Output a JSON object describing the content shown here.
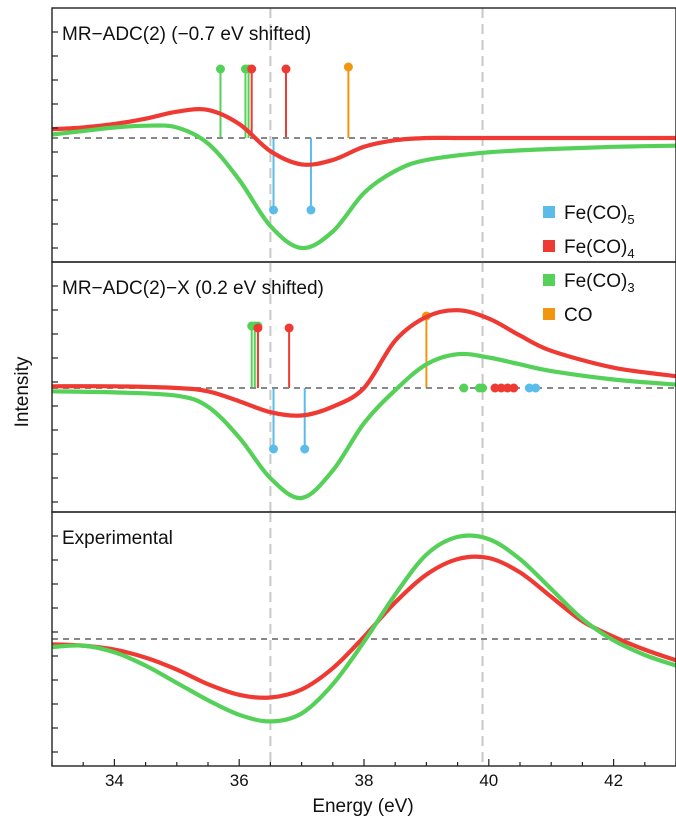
{
  "figure": {
    "ylabel": "Intensity",
    "xlabel": "Energy (eV)",
    "x_ticks": [
      "34",
      "36",
      "38",
      "40",
      "42"
    ],
    "colors": {
      "Fe(CO)5": "#5bbcea",
      "Fe(CO)4": "#ee3a33",
      "Fe(CO)3": "#55d058",
      "CO": "#f2950f",
      "zero_line": "#888888",
      "guide_line": "#c8c8c8"
    },
    "legend": [
      {
        "base": "Fe(CO)",
        "sub": "5",
        "color": "#5bbcea"
      },
      {
        "base": "Fe(CO)",
        "sub": "4",
        "color": "#ee3a33"
      },
      {
        "base": "Fe(CO)",
        "sub": "3",
        "color": "#55d058"
      },
      {
        "base": "CO",
        "sub": "",
        "color": "#f2950f"
      }
    ],
    "panel_titles": [
      "MR−ADC(2) (−0.7 eV shifted)",
      "MR−ADC(2)−X (0.2 eV shifted)",
      "Experimental"
    ]
  },
  "chart_data": [
    {
      "type": "line",
      "title": "MR−ADC(2) (−0.7 eV shifted)",
      "xlim": [
        33,
        43
      ],
      "ylim": [
        -1.0,
        0.65
      ],
      "guide_x": [
        36.5,
        39.9
      ],
      "series": [
        {
          "name": "Fe(CO)4",
          "color": "#ee3a33",
          "x": [
            33,
            33.5,
            34,
            34.5,
            35,
            35.5,
            36,
            36.5,
            37,
            37.5,
            38,
            38.5,
            39,
            39.5,
            40,
            41,
            42,
            43
          ],
          "y": [
            0.05,
            0.06,
            0.08,
            0.11,
            0.15,
            0.16,
            0.08,
            -0.12,
            -0.24,
            -0.2,
            -0.08,
            -0.02,
            0,
            0,
            0,
            0,
            0,
            0
          ]
        },
        {
          "name": "Fe(CO)3",
          "color": "#55d058",
          "x": [
            33,
            33.5,
            34,
            34.5,
            35,
            35.5,
            36,
            36.5,
            37,
            37.5,
            38,
            38.5,
            39,
            40,
            41,
            42,
            43
          ],
          "y": [
            0.02,
            0.04,
            0.06,
            0.07,
            0.06,
            -0.05,
            -0.38,
            -0.8,
            -1.0,
            -0.85,
            -0.5,
            -0.3,
            -0.2,
            -0.13,
            -0.1,
            -0.08,
            -0.07
          ]
        }
      ],
      "sticks": [
        {
          "species": "Fe(CO)3",
          "x": [
            35.7,
            36.1,
            36.15
          ]
        },
        {
          "species": "Fe(CO)4",
          "x": [
            36.2,
            36.75
          ]
        },
        {
          "species": "CO",
          "x": [
            37.75
          ]
        },
        {
          "species": "Fe(CO)5",
          "x": [
            36.55,
            37.15
          ]
        }
      ]
    },
    {
      "type": "line",
      "title": "MR−ADC(2)−X (0.2 eV shifted)",
      "xlim": [
        33,
        43
      ],
      "ylim": [
        -1.0,
        0.65
      ],
      "guide_x": [
        36.5,
        39.9
      ],
      "series": [
        {
          "name": "Fe(CO)4",
          "color": "#ee3a33",
          "x": [
            33,
            34,
            35,
            35.5,
            36,
            36.5,
            37,
            37.5,
            38,
            38.5,
            39,
            39.5,
            40,
            40.5,
            41,
            42,
            43
          ],
          "y": [
            0.01,
            0.01,
            0,
            -0.03,
            -0.12,
            -0.22,
            -0.25,
            -0.17,
            0,
            0.28,
            0.42,
            0.46,
            0.41,
            0.31,
            0.22,
            0.12,
            0.07
          ]
        },
        {
          "name": "Fe(CO)3",
          "color": "#55d058",
          "x": [
            33,
            34,
            35,
            35.5,
            36,
            36.5,
            37,
            37.5,
            38,
            38.5,
            39,
            39.5,
            40,
            40.5,
            41,
            42,
            43
          ],
          "y": [
            -0.03,
            -0.04,
            -0.07,
            -0.17,
            -0.45,
            -0.82,
            -1.0,
            -0.75,
            -0.32,
            -0.02,
            0.14,
            0.2,
            0.18,
            0.14,
            0.1,
            0.05,
            0.02
          ]
        }
      ],
      "sticks": [
        {
          "species": "Fe(CO)3",
          "x": [
            36.2,
            36.25,
            36.3
          ]
        },
        {
          "species": "Fe(CO)4",
          "x": [
            36.3,
            36.8
          ]
        },
        {
          "species": "CO",
          "x": [
            39.0
          ]
        },
        {
          "species": "Fe(CO)5",
          "x": [
            36.55,
            37.05
          ]
        }
      ],
      "axis_dots": [
        {
          "species": "Fe(CO)3",
          "x": [
            39.6,
            39.85,
            39.9
          ]
        },
        {
          "species": "Fe(CO)4",
          "x": [
            40.1,
            40.2,
            40.3,
            40.4
          ]
        },
        {
          "species": "Fe(CO)5",
          "x": [
            40.65,
            40.75
          ]
        }
      ]
    },
    {
      "type": "line",
      "title": "Experimental",
      "xlim": [
        33,
        43
      ],
      "ylim": [
        -0.85,
        1.0
      ],
      "guide_x": [
        36.5,
        39.9
      ],
      "series": [
        {
          "name": "Fe(CO)4",
          "color": "#ee3a33",
          "x": [
            33,
            33.5,
            34,
            34.5,
            35,
            35.5,
            36,
            36.5,
            37,
            37.5,
            38,
            38.5,
            39,
            39.5,
            40,
            40.5,
            41,
            41.5,
            42,
            42.5,
            43
          ],
          "y": [
            -0.04,
            -0.05,
            -0.08,
            -0.14,
            -0.23,
            -0.34,
            -0.42,
            -0.44,
            -0.38,
            -0.22,
            0.02,
            0.33,
            0.58,
            0.72,
            0.73,
            0.6,
            0.38,
            0.16,
            0.02,
            -0.08,
            -0.16
          ]
        },
        {
          "name": "Fe(CO)3",
          "color": "#55d058",
          "x": [
            33,
            33.5,
            34,
            34.5,
            35,
            35.5,
            36,
            36.5,
            37,
            37.5,
            38,
            38.5,
            39,
            39.5,
            40,
            40.5,
            41,
            41.5,
            42,
            42.5,
            43
          ],
          "y": [
            -0.06,
            -0.05,
            -0.1,
            -0.2,
            -0.33,
            -0.46,
            -0.57,
            -0.62,
            -0.56,
            -0.34,
            -0.02,
            0.4,
            0.76,
            0.92,
            0.9,
            0.72,
            0.45,
            0.18,
            -0.01,
            -0.12,
            -0.2
          ]
        }
      ]
    }
  ]
}
